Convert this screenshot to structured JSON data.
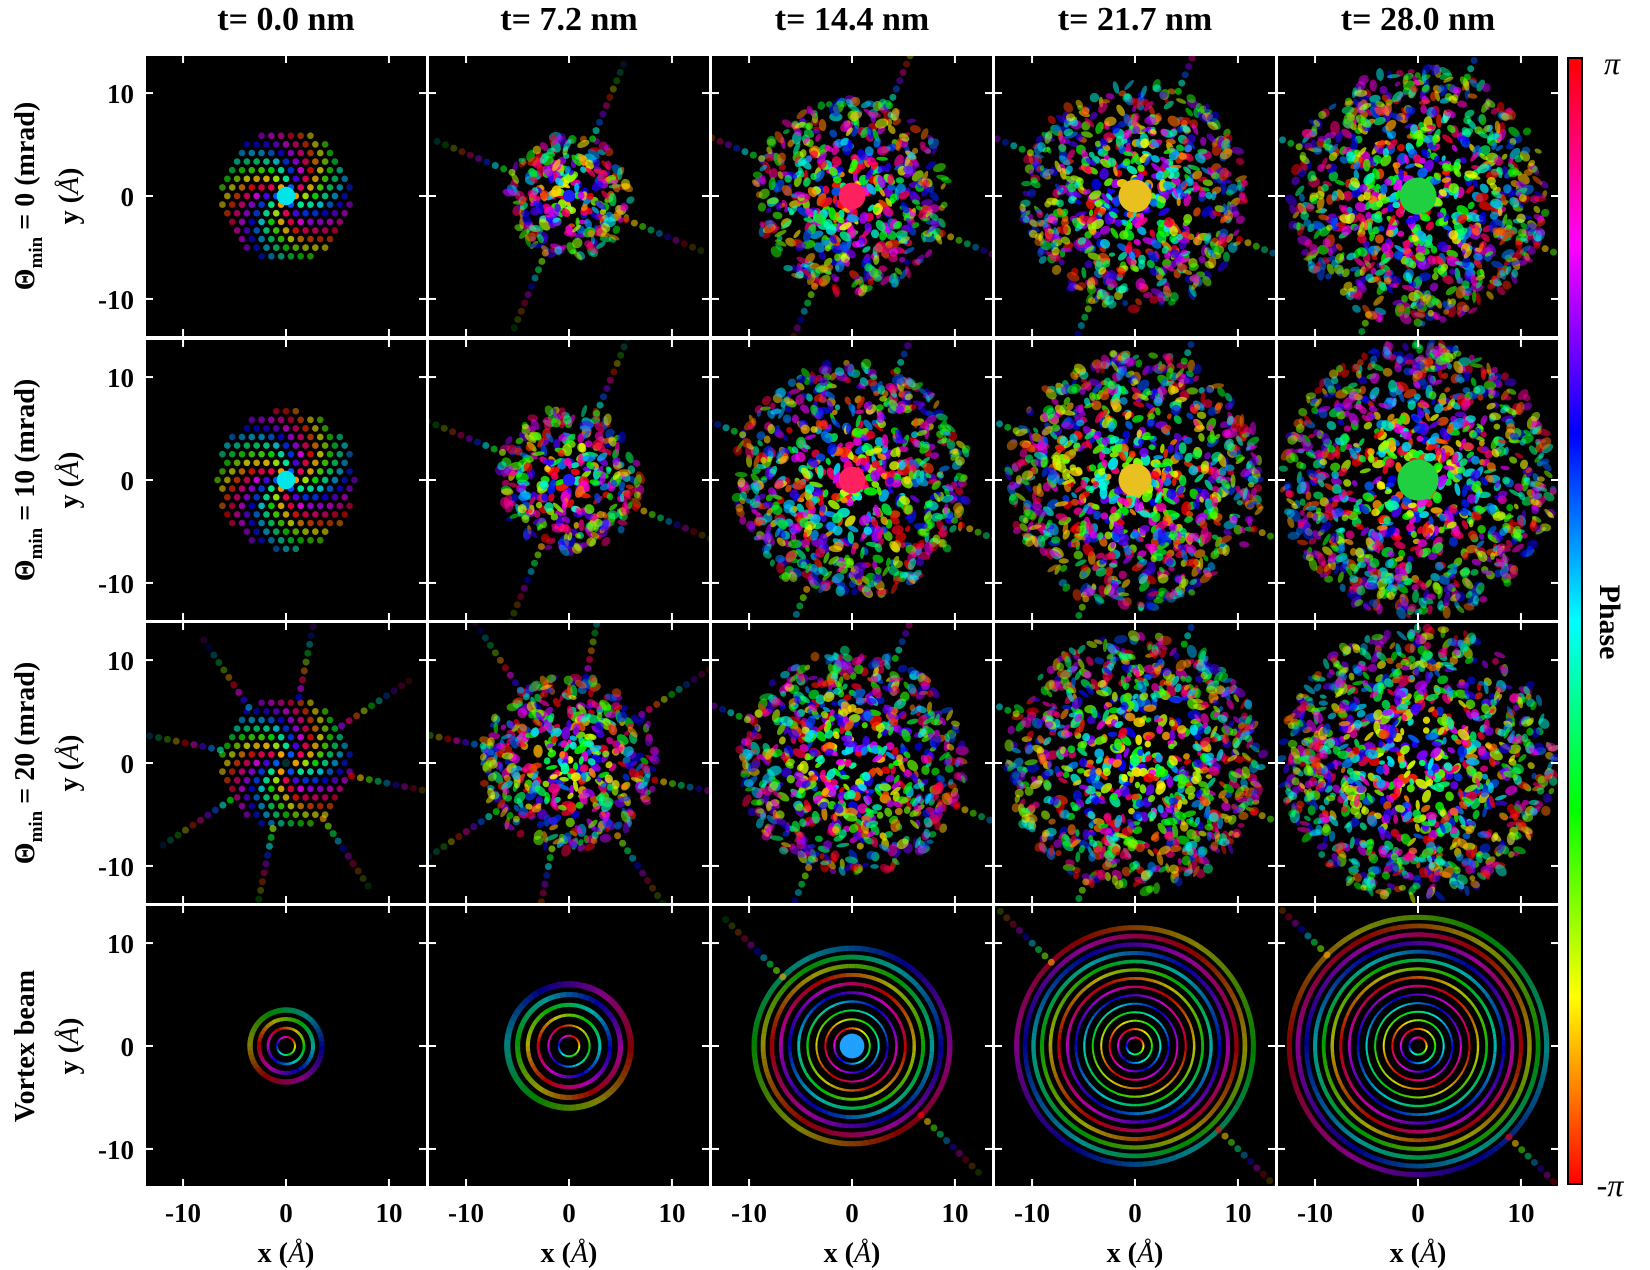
{
  "chart_data": {
    "type": "heatmap",
    "description_layout": "4x5 grid",
    "columns": [
      {
        "title": "t= 0.0 nm",
        "t_nm": 0.0
      },
      {
        "title": "t= 7.2 nm",
        "t_nm": 7.2
      },
      {
        "title": "t= 14.4 nm",
        "t_nm": 14.4
      },
      {
        "title": "t= 21.7 nm",
        "t_nm": 21.7
      },
      {
        "title": "t= 28.0 nm",
        "t_nm": 28.0
      }
    ],
    "rows": [
      {
        "label_main": "Θ",
        "label_sub": "min",
        "label_rest": " = 0 (mrad)",
        "theta_min_mrad": 0
      },
      {
        "label_main": "Θ",
        "label_sub": "min",
        "label_rest": " = 10 (mrad)",
        "theta_min_mrad": 10
      },
      {
        "label_main": "Θ",
        "label_sub": "min",
        "label_rest": " = 20 (mrad)",
        "theta_min_mrad": 20
      },
      {
        "label_main": "Vortex beam",
        "label_sub": "",
        "label_rest": "",
        "theta_min_mrad": null
      }
    ],
    "x_ticks": [
      "-10",
      "0",
      "10"
    ],
    "x_tick_values": [
      -10,
      0,
      10
    ],
    "y_ticks": [
      "10",
      "0",
      "-10"
    ],
    "y_tick_values": [
      10,
      0,
      -10
    ],
    "xlim": [
      -13.6,
      13.6
    ],
    "ylim": [
      -13.6,
      13.6
    ],
    "xlabel_prefix": "x (",
    "xlabel_unit": "Å",
    "xlabel_suffix": ")",
    "ylabel_prefix": "y (",
    "ylabel_unit": "Å",
    "ylabel_suffix": ")",
    "colorbar": {
      "label": "Phase",
      "max_label": "π",
      "min_label": "-π",
      "range": [
        -3.1416,
        3.1416
      ],
      "colors": [
        "#ff0000",
        "#ffff00",
        "#00ff00",
        "#00ffff",
        "#0000ff",
        "#ff00ff",
        "#ff0000"
      ]
    },
    "panels": [
      [
        {
          "extent": 6.5,
          "core": "#00e5e5",
          "core_r": 0.9,
          "pattern": "lattice",
          "arms": 0
        },
        {
          "extent": 6.0,
          "core": "#2020ff",
          "core_r": 0.6,
          "pattern": "speckle",
          "arms": 4
        },
        {
          "extent": 9.5,
          "core": "#ff2060",
          "core_r": 1.3,
          "pattern": "speckle",
          "arms": 4
        },
        {
          "extent": 11.0,
          "core": "#e8c020",
          "core_r": 1.6,
          "pattern": "speckle",
          "arms": 4
        },
        {
          "extent": 12.5,
          "core": "#20d040",
          "core_r": 1.8,
          "pattern": "speckle",
          "arms": 4
        }
      ],
      [
        {
          "extent": 6.8,
          "core": "#00e5e5",
          "core_r": 0.9,
          "pattern": "lattice",
          "arms": 0
        },
        {
          "extent": 7.0,
          "core": "#2020ff",
          "core_r": 0.6,
          "pattern": "speckle",
          "arms": 4
        },
        {
          "extent": 11.5,
          "core": "#ff2060",
          "core_r": 1.3,
          "pattern": "speckle",
          "arms": 4
        },
        {
          "extent": 12.5,
          "core": "#e8c020",
          "core_r": 1.6,
          "pattern": "speckle",
          "arms": 4
        },
        {
          "extent": 13.3,
          "core": "#20d040",
          "core_r": 2.0,
          "pattern": "speckle",
          "arms": 0
        }
      ],
      [
        {
          "extent": 6.5,
          "core": "#003030",
          "core_r": 0.4,
          "pattern": "lattice",
          "arms": 8
        },
        {
          "extent": 8.5,
          "core": "",
          "core_r": 0,
          "pattern": "speckle",
          "arms": 8
        },
        {
          "extent": 11.0,
          "core": "",
          "core_r": 0,
          "pattern": "speckle",
          "arms": 4
        },
        {
          "extent": 12.5,
          "core": "",
          "core_r": 0,
          "pattern": "speckle",
          "arms": 4
        },
        {
          "extent": 13.3,
          "core": "",
          "core_r": 0,
          "pattern": "speckle",
          "arms": 0
        }
      ],
      [
        {
          "extent": 3.5,
          "core": "",
          "core_r": 0,
          "pattern": "vortex",
          "arms": 0
        },
        {
          "extent": 6.0,
          "core": "",
          "core_r": 0,
          "pattern": "vortex",
          "arms": 0
        },
        {
          "extent": 9.5,
          "core": "#20a0ff",
          "core_r": 1.2,
          "pattern": "rings",
          "arms": 2
        },
        {
          "extent": 11.5,
          "core": "",
          "core_r": 0,
          "pattern": "rings",
          "arms": 2
        },
        {
          "extent": 12.5,
          "core": "",
          "core_r": 0,
          "pattern": "rings",
          "arms": 2
        }
      ]
    ]
  }
}
